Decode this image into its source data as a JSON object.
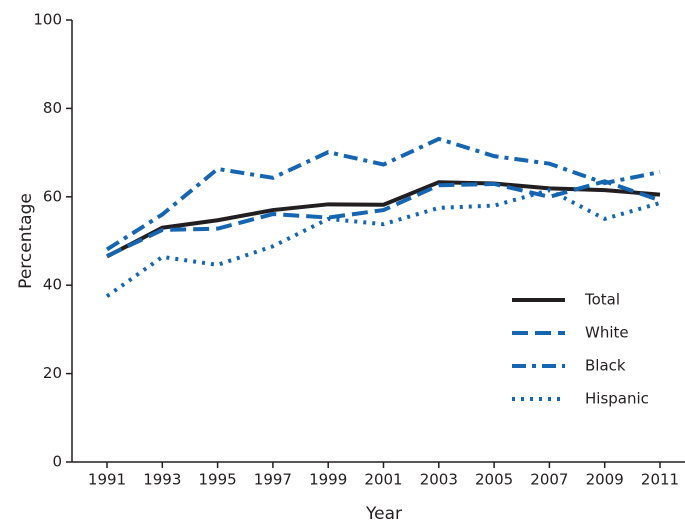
{
  "chart_data": {
    "type": "line",
    "x_label": "Year",
    "y_label": "Percentage",
    "categories": [
      "1991",
      "1993",
      "1995",
      "1997",
      "1999",
      "2001",
      "2003",
      "2005",
      "2007",
      "2009",
      "2011"
    ],
    "series": [
      {
        "name": "Total",
        "color": "#231f20",
        "style": "solid",
        "values": [
          46.5,
          53.0,
          54.7,
          57.0,
          58.3,
          58.2,
          63.3,
          63.0,
          61.9,
          61.5,
          60.5
        ]
      },
      {
        "name": "White",
        "color": "#1565b0",
        "style": "dashed",
        "values": [
          46.6,
          52.5,
          52.8,
          56.1,
          55.3,
          57.0,
          62.6,
          62.9,
          60.0,
          63.5,
          59.2
        ]
      },
      {
        "name": "Black",
        "color": "#1565b0",
        "style": "dashdot",
        "values": [
          48.1,
          56.0,
          66.3,
          64.3,
          70.1,
          67.3,
          73.1,
          69.2,
          67.5,
          63.1,
          65.6
        ]
      },
      {
        "name": "Hispanic",
        "color": "#1565b0",
        "style": "dotted",
        "values": [
          37.5,
          46.4,
          44.6,
          48.8,
          55.0,
          53.8,
          57.5,
          58.0,
          61.5,
          55.0,
          58.6
        ]
      }
    ],
    "ylim": [
      0,
      100
    ],
    "yticks": [
      0,
      20,
      40,
      60,
      80,
      100
    ],
    "grid": false,
    "legend": "lower right"
  }
}
